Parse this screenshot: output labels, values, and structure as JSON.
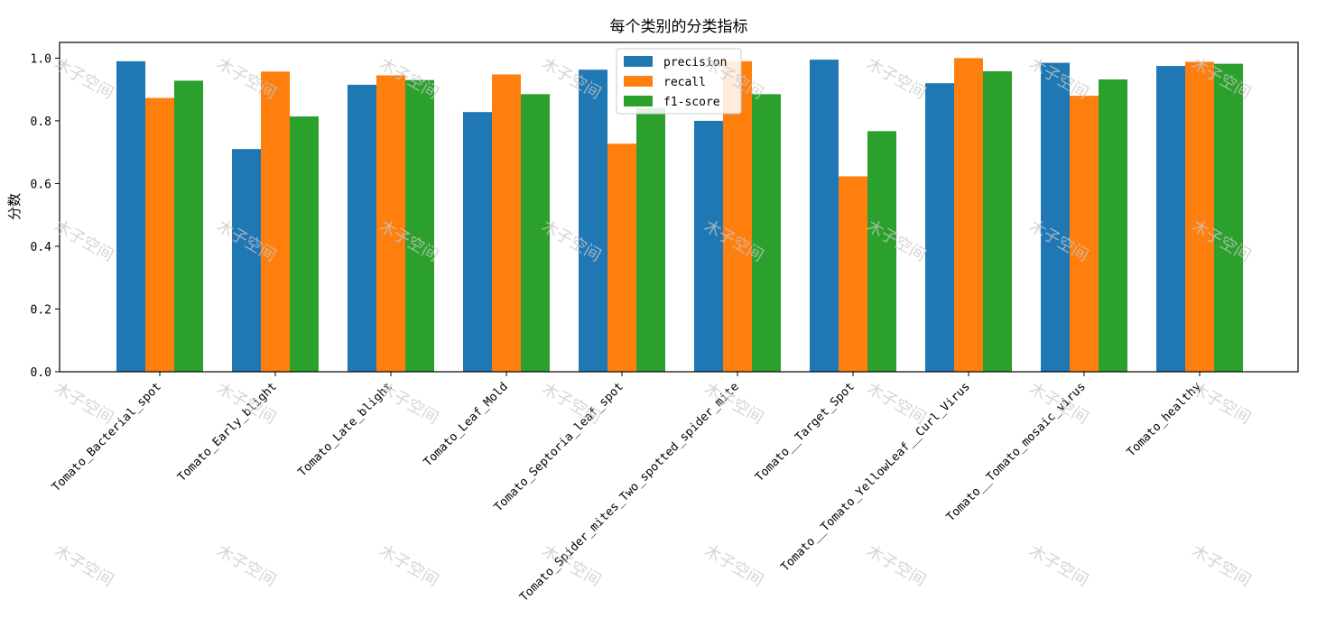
{
  "watermark": "木子空间",
  "chart_data": {
    "type": "bar",
    "title": "每个类别的分类指标",
    "xlabel": "",
    "ylabel": "分数",
    "ylim": [
      0,
      1.05
    ],
    "yticks": [
      "0.0",
      "0.2",
      "0.4",
      "0.6",
      "0.8",
      "1.0"
    ],
    "legend_position": "upper-center",
    "grid": false,
    "categories": [
      "Tomato_Bacterial_spot",
      "Tomato_Early_blight",
      "Tomato_Late_blight",
      "Tomato_Leaf_Mold",
      "Tomato_Septoria_leaf_spot",
      "Tomato_Spider_mites_Two_spotted_spider_mite",
      "Tomato__Target_Spot",
      "Tomato__Tomato_YellowLeaf__Curl_Virus",
      "Tomato__Tomato_mosaic_virus",
      "Tomato_healthy"
    ],
    "series": [
      {
        "name": "precision",
        "color": "#1f77b4",
        "values": [
          0.99,
          0.71,
          0.915,
          0.828,
          0.963,
          0.8,
          0.995,
          0.92,
          0.985,
          0.975
        ]
      },
      {
        "name": "recall",
        "color": "#ff7f0e",
        "values": [
          0.873,
          0.957,
          0.945,
          0.948,
          0.727,
          0.99,
          0.623,
          1.0,
          0.88,
          0.988
        ]
      },
      {
        "name": "f1-score",
        "color": "#2ca02c",
        "values": [
          0.928,
          0.814,
          0.93,
          0.885,
          0.84,
          0.885,
          0.767,
          0.958,
          0.932,
          0.982
        ]
      }
    ]
  }
}
